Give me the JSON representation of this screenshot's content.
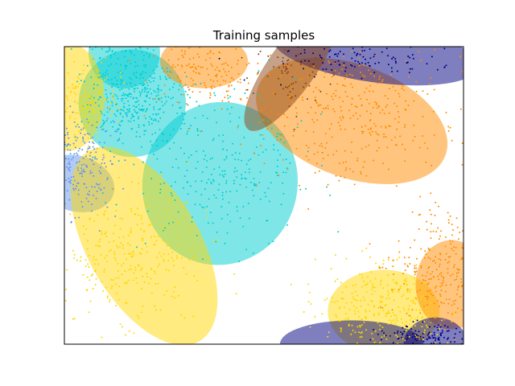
{
  "chart_data": {
    "type": "scatter",
    "title": "Training samples",
    "xlabel": "",
    "ylabel": "",
    "xlim": [
      0,
      100
    ],
    "ylim": [
      0,
      100
    ],
    "grid": false,
    "legend": "none",
    "axis_ticks": "hidden",
    "series": [
      {
        "color": "#6495ed",
        "seed": 11,
        "clusters": [
          {
            "cx": 4,
            "cy": 61,
            "sx": 4,
            "sy": 9,
            "n": 230
          }
        ],
        "ellipses": [
          {
            "cx": 3,
            "cy": 54,
            "rx": 7,
            "ry": 13,
            "angle": 75
          }
        ]
      },
      {
        "color": "#00ced1",
        "seed": 23,
        "clusters": [
          {
            "cx": 17,
            "cy": 82,
            "sx": 6,
            "sy": 8,
            "n": 380
          },
          {
            "cx": 40,
            "cy": 59,
            "sx": 10,
            "sy": 11,
            "n": 260
          },
          {
            "cx": 12,
            "cy": 100,
            "sx": 5,
            "sy": 3,
            "n": 60
          }
        ],
        "ellipses": [
          {
            "cx": 17,
            "cy": 81,
            "rx": 13.5,
            "ry": 18,
            "angle": 75
          },
          {
            "cx": 39,
            "cy": 54,
            "rx": 20.5,
            "ry": 26,
            "angle": 75
          },
          {
            "cx": 15,
            "cy": 98,
            "rx": 9,
            "ry": 12,
            "angle": 60
          }
        ]
      },
      {
        "color": "#ffd700",
        "seed": 37,
        "clusters": [
          {
            "cx": 17,
            "cy": 30,
            "sx": 9,
            "sy": 11,
            "n": 300
          },
          {
            "cx": 80,
            "cy": 12,
            "sx": 8,
            "sy": 8,
            "n": 320
          },
          {
            "cx": 5,
            "cy": 83,
            "sx": 4,
            "sy": 8,
            "n": 160
          }
        ],
        "ellipses": [
          {
            "cx": 20,
            "cy": 33,
            "rx": 14,
            "ry": 37,
            "angle": 30
          },
          {
            "cx": 80,
            "cy": 11,
            "rx": 14,
            "ry": 14,
            "angle": 0
          },
          {
            "cx": 1,
            "cy": 83,
            "rx": 9,
            "ry": 18,
            "angle": 0
          }
        ]
      },
      {
        "color": "#ff8c00",
        "seed": 53,
        "clusters": [
          {
            "cx": 72,
            "cy": 77,
            "sx": 12,
            "sy": 11,
            "n": 340
          },
          {
            "cx": 35,
            "cy": 92,
            "sx": 6,
            "sy": 6,
            "n": 160
          },
          {
            "cx": 95,
            "cy": 25,
            "sx": 6,
            "sy": 11,
            "n": 270
          }
        ],
        "ellipses": [
          {
            "cx": 72,
            "cy": 75,
            "rx": 25,
            "ry": 19,
            "angle": -20
          },
          {
            "cx": 35,
            "cy": 95,
            "rx": 11,
            "ry": 9,
            "angle": 0
          },
          {
            "cx": 97,
            "cy": 20,
            "rx": 9,
            "ry": 15,
            "angle": 0
          }
        ]
      },
      {
        "color": "#000080",
        "seed": 71,
        "clusters": [
          {
            "cx": 90,
            "cy": 3,
            "sx": 6,
            "sy": 2,
            "n": 100
          },
          {
            "cx": 75,
            "cy": 96,
            "sx": 12,
            "sy": 3,
            "n": 110
          }
        ],
        "ellipses": [
          {
            "cx": 72,
            "cy": 0,
            "rx": 18,
            "ry": 8,
            "angle": 0
          },
          {
            "cx": 93,
            "cy": 0,
            "rx": 8,
            "ry": 9,
            "angle": 0
          },
          {
            "cx": 78,
            "cy": 98,
            "rx": 26,
            "ry": 10,
            "angle": -8
          }
        ]
      },
      {
        "color": "#8b4513",
        "seed": 89,
        "clusters": [
          {
            "cx": 55,
            "cy": 91,
            "sx": 5,
            "sy": 6,
            "n": 70
          }
        ],
        "ellipses": [
          {
            "cx": 57,
            "cy": 93,
            "rx": 19,
            "ry": 8,
            "angle": 55
          }
        ]
      }
    ]
  }
}
